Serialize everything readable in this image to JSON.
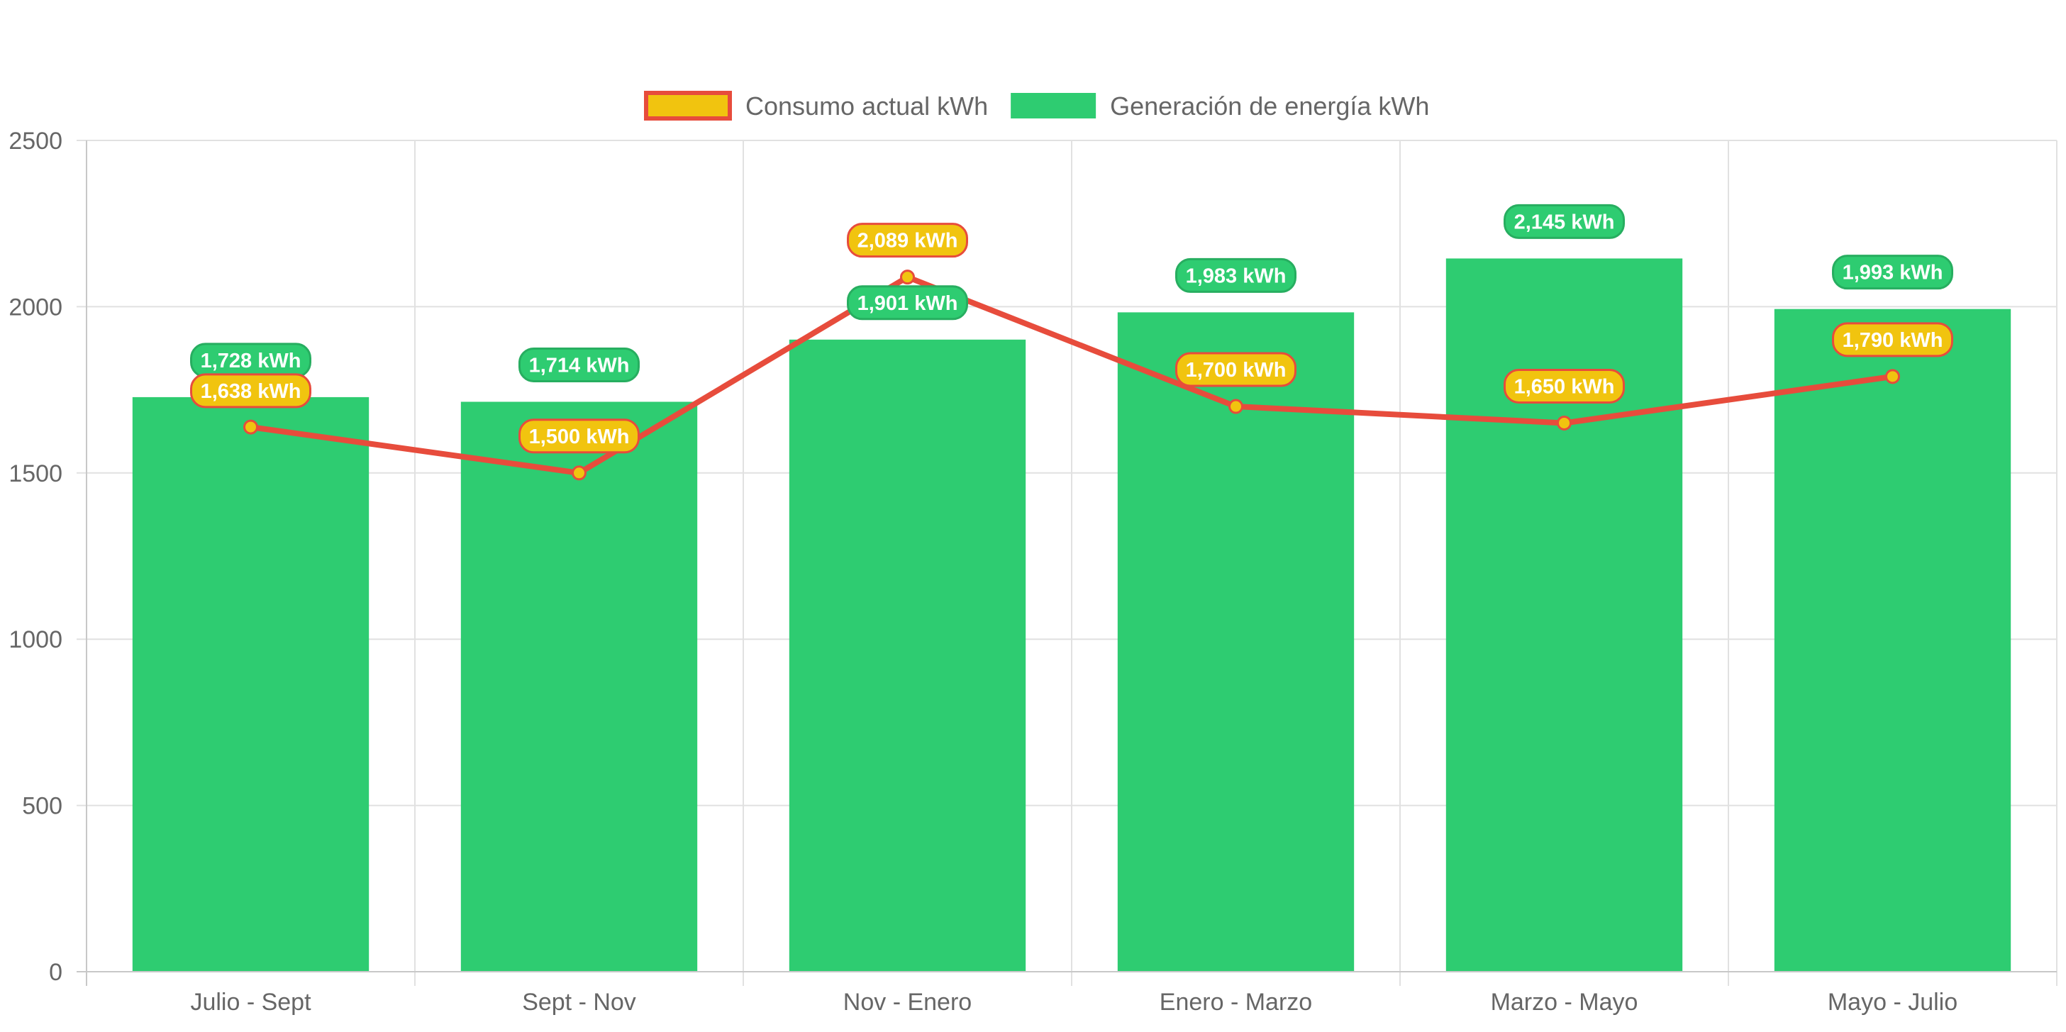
{
  "chart_data": {
    "type": "bar",
    "categories": [
      "Julio - Sept",
      "Sept - Nov",
      "Nov - Enero",
      "Enero - Marzo",
      "Marzo - Mayo",
      "Mayo - Julio"
    ],
    "series": [
      {
        "name": "Consumo actual kWh",
        "type": "line",
        "values": [
          1638,
          1500,
          2089,
          1700,
          1650,
          1790
        ],
        "labels": [
          "1,638 kWh",
          "1,500 kWh",
          "2,089 kWh",
          "1,700 kWh",
          "1,650 kWh",
          "1,790 kWh"
        ],
        "color": "#e74c3c",
        "fill_color": "#f1c40f"
      },
      {
        "name": "Generación de energía kWh",
        "type": "bar",
        "values": [
          1728,
          1714,
          1901,
          1983,
          2145,
          1993
        ],
        "labels": [
          "1,728 kWh",
          "1,714 kWh",
          "1,901 kWh",
          "1,983 kWh",
          "2,145 kWh",
          "1,993 kWh"
        ],
        "color": "#2ecc71"
      }
    ],
    "y_ticks": [
      "0",
      "500",
      "1000",
      "1500",
      "2000",
      "2500"
    ],
    "ylim": [
      0,
      2500
    ],
    "grid": true,
    "legend_position": "top-center"
  }
}
